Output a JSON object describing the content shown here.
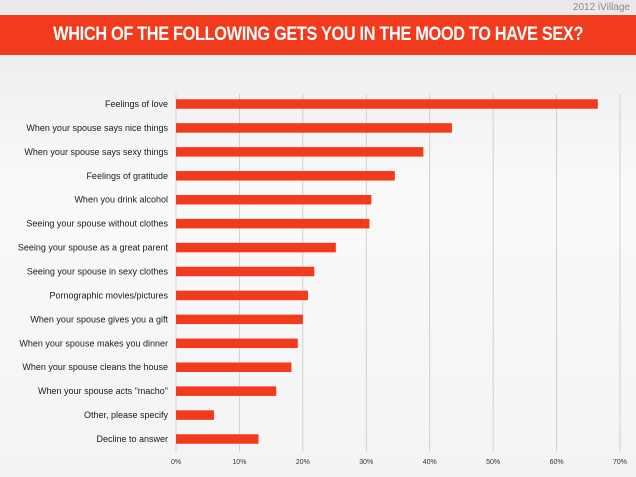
{
  "credit": "2012 iVillage",
  "colors": {
    "bar": "#f23a1d",
    "banner": "#f23a1d",
    "grid": "#c8c8c8"
  },
  "chart_data": {
    "type": "bar",
    "orientation": "horizontal",
    "title": "WHICH OF THE FOLLOWING GETS YOU IN THE MOOD TO HAVE SEX?",
    "categories": [
      "Feelings of love",
      "When your spouse says nice things",
      "When your spouse says sexy things",
      "Feelings of gratitude",
      "When you drink alcohol",
      "Seeing your spouse without clothes",
      "Seeing your spouse as a great parent",
      "Seeing your spouse in sexy clothes",
      "Pornographic movies/pictures",
      "When your spouse gives you a gift",
      "When your spouse makes you dinner",
      "When your spouse cleans the house",
      "When your spouse acts \"macho\"",
      "Other, please specify",
      "Decline to answer"
    ],
    "values": [
      66.5,
      43.5,
      39,
      34.5,
      30.8,
      30.5,
      25.2,
      21.8,
      20.8,
      20,
      19.2,
      18.2,
      15.8,
      6,
      13
    ],
    "unit": "%",
    "xlim": [
      0,
      70
    ],
    "xticks": [
      "0%",
      "10%",
      "20%",
      "30%",
      "40%",
      "50%",
      "60%",
      "70%"
    ],
    "grid": "vertical",
    "legend": "none"
  }
}
